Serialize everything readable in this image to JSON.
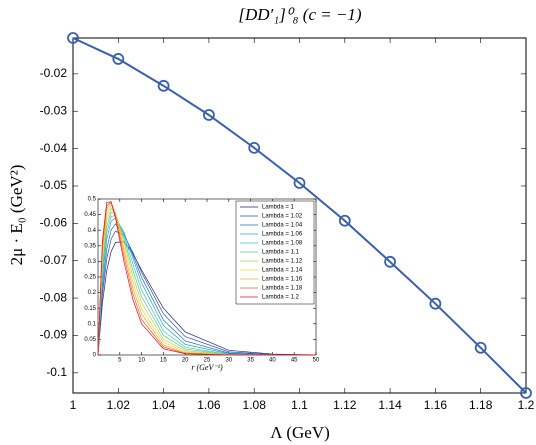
{
  "chart_data": [
    {
      "type": "line",
      "title": "[DD′₁]⁰₈ (c = −1)",
      "x_label": "Λ (GeV)",
      "y_label": "2μ · E₀ (GeV²)",
      "x": [
        1,
        1.02,
        1.04,
        1.06,
        1.08,
        1.1,
        1.12,
        1.14,
        1.16,
        1.18,
        1.2
      ],
      "series": [
        {
          "color": "#3a5fad",
          "marker": "circle",
          "values": [
            -0.0104,
            -0.016,
            -0.0232,
            -0.031,
            -0.0398,
            -0.0492,
            -0.0593,
            -0.0703,
            -0.0815,
            -0.0933,
            -0.1054
          ]
        }
      ],
      "xlim": [
        1,
        1.2
      ],
      "ylim": [
        -0.1054,
        -0.0104
      ],
      "xticks": [
        1,
        1.02,
        1.04,
        1.06,
        1.08,
        1.1,
        1.12,
        1.14,
        1.16,
        1.18,
        1.2
      ],
      "yticks": [
        -0.02,
        -0.03,
        -0.04,
        -0.05,
        -0.06,
        -0.07,
        -0.08,
        -0.09,
        -0.1
      ],
      "grid": false
    },
    {
      "type": "line",
      "x_label": "r (GeV⁻¹)",
      "legend": "upper right",
      "x": [
        0,
        1,
        2,
        3,
        4,
        6,
        8,
        10,
        15,
        20,
        30,
        40,
        50
      ],
      "series": [
        {
          "name": "Lambda = 1",
          "color": "#1a237e",
          "values": [
            0,
            0.165,
            0.27,
            0.331,
            0.361,
            0.363,
            0.325,
            0.272,
            0.15,
            0.074,
            0.015,
            0.003,
            0.0004
          ]
        },
        {
          "name": "Lambda = 1.02",
          "color": "#3949ab",
          "values": [
            0,
            0.192,
            0.308,
            0.371,
            0.397,
            0.383,
            0.329,
            0.265,
            0.132,
            0.059,
            0.01,
            0.0014,
            0.0002
          ]
        },
        {
          "name": "Lambda = 1.04",
          "color": "#1e6fb0",
          "values": [
            0,
            0.215,
            0.339,
            0.4,
            0.42,
            0.389,
            0.321,
            0.249,
            0.112,
            0.045,
            0.006,
            0.0008,
            0.0001
          ]
        },
        {
          "name": "Lambda = 1.06",
          "color": "#2aa0c8",
          "values": [
            0,
            0.24,
            0.37,
            0.428,
            0.44,
            0.392,
            0.311,
            0.231,
            0.095,
            0.034,
            0.004,
            0.0004,
            0
          ]
        },
        {
          "name": "Lambda = 1.08",
          "color": "#40c4c0",
          "values": [
            0,
            0.259,
            0.392,
            0.444,
            0.447,
            0.383,
            0.292,
            0.208,
            0.077,
            0.025,
            0.002,
            0.0002,
            0
          ]
        },
        {
          "name": "Lambda = 1.1",
          "color": "#5cc48a",
          "values": [
            0,
            0.278,
            0.412,
            0.458,
            0.452,
            0.372,
            0.272,
            0.187,
            0.063,
            0.019,
            0.0014,
            0.0001,
            0
          ]
        },
        {
          "name": "Lambda = 1.12",
          "color": "#a8d45a",
          "values": [
            0,
            0.297,
            0.431,
            0.47,
            0.454,
            0.36,
            0.253,
            0.167,
            0.05,
            0.014,
            0.0008,
            0,
            0
          ]
        },
        {
          "name": "Lambda = 1.14",
          "color": "#f0d830",
          "values": [
            0,
            0.316,
            0.449,
            0.48,
            0.456,
            0.346,
            0.234,
            0.148,
            0.041,
            0.01,
            0.0005,
            0,
            0
          ]
        },
        {
          "name": "Lambda = 1.16",
          "color": "#f5a623",
          "values": [
            0,
            0.335,
            0.467,
            0.489,
            0.454,
            0.332,
            0.215,
            0.131,
            0.032,
            0.007,
            0.0003,
            0,
            0
          ]
        },
        {
          "name": "Lambda = 1.18",
          "color": "#f05a28",
          "values": [
            0,
            0.349,
            0.478,
            0.491,
            0.447,
            0.314,
            0.196,
            0.114,
            0.026,
            0.005,
            0.0002,
            0,
            0
          ]
        },
        {
          "name": "Lambda = 1.2",
          "color": "#e0102a",
          "values": [
            0,
            0.365,
            0.489,
            0.491,
            0.439,
            0.296,
            0.178,
            0.1,
            0.02,
            0.004,
            0.0001,
            0,
            0
          ]
        }
      ],
      "xlim": [
        0,
        50
      ],
      "ylim": [
        0,
        0.5
      ],
      "xticks": [
        5,
        10,
        15,
        20,
        25,
        30,
        35,
        40,
        45,
        50
      ],
      "yticks": [
        0,
        0.05,
        0.1,
        0.15,
        0.2,
        0.25,
        0.3,
        0.35,
        0.4,
        0.45,
        0.5
      ],
      "grid": false
    }
  ]
}
